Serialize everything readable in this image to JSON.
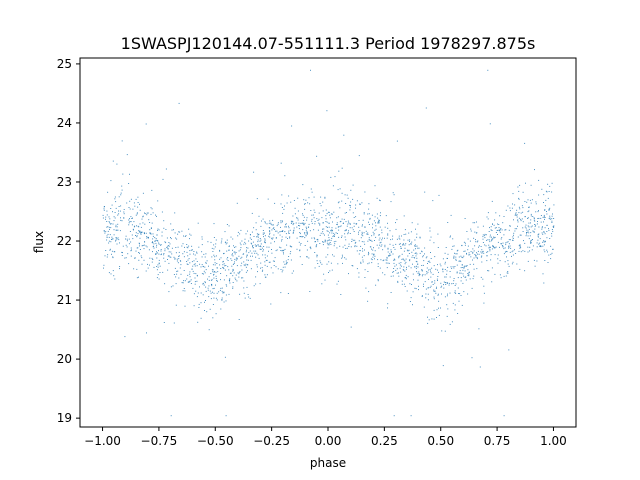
{
  "chart_data": {
    "type": "scatter",
    "title": "1SWASPJ120144.07-551111.3 Period 1978297.875s",
    "xlabel": "phase",
    "ylabel": "flux",
    "xlim": [
      -1.1,
      1.1
    ],
    "ylim": [
      18.85,
      25.1
    ],
    "x_ticks": [
      -1.0,
      -0.75,
      -0.5,
      -0.25,
      0.0,
      0.25,
      0.5,
      0.75,
      1.0
    ],
    "x_tick_labels": [
      "−1.00",
      "−0.75",
      "−0.50",
      "−0.25",
      "0.00",
      "0.25",
      "0.50",
      "0.75",
      "1.00"
    ],
    "y_ticks": [
      19,
      20,
      21,
      22,
      23,
      24,
      25
    ],
    "y_tick_labels": [
      "19",
      "20",
      "21",
      "22",
      "23",
      "24",
      "25"
    ],
    "grid": false,
    "legend": "none",
    "point_color": "#1f77b4",
    "series": [
      {
        "phase": [
          -1.0,
          -0.95,
          -0.9,
          -0.85,
          -0.8,
          -0.75,
          -0.7,
          -0.65,
          -0.6,
          -0.55,
          -0.5,
          -0.45,
          -0.4,
          -0.35,
          -0.3,
          -0.25,
          -0.2,
          -0.15,
          -0.1,
          -0.05,
          0.0,
          0.05,
          0.1,
          0.15,
          0.2,
          0.25,
          0.3,
          0.35,
          0.4,
          0.45,
          0.5,
          0.55,
          0.6,
          0.65,
          0.7,
          0.75,
          0.8,
          0.85,
          0.9,
          0.95,
          1.0
        ],
        "median_flux": [
          22.2,
          22.2,
          22.2,
          22.1,
          22.0,
          21.9,
          21.8,
          21.7,
          21.55,
          21.45,
          21.4,
          21.5,
          21.6,
          21.8,
          21.9,
          22.0,
          22.1,
          22.2,
          22.2,
          22.2,
          22.2,
          22.2,
          22.2,
          22.1,
          22.0,
          21.9,
          21.8,
          21.7,
          21.55,
          21.45,
          21.4,
          21.5,
          21.6,
          21.8,
          21.9,
          22.0,
          22.1,
          22.2,
          22.2,
          22.2,
          22.2
        ],
        "flux_spread": [
          0.55,
          0.6,
          0.7,
          0.55,
          0.5,
          0.5,
          0.5,
          0.5,
          0.5,
          0.55,
          0.55,
          0.55,
          0.5,
          0.5,
          0.5,
          0.5,
          0.5,
          0.5,
          0.5,
          0.55,
          0.6,
          0.6,
          0.7,
          0.55,
          0.5,
          0.5,
          0.5,
          0.5,
          0.5,
          0.55,
          0.55,
          0.55,
          0.5,
          0.5,
          0.5,
          0.5,
          0.5,
          0.5,
          0.5,
          0.55,
          0.55
        ]
      }
    ]
  }
}
